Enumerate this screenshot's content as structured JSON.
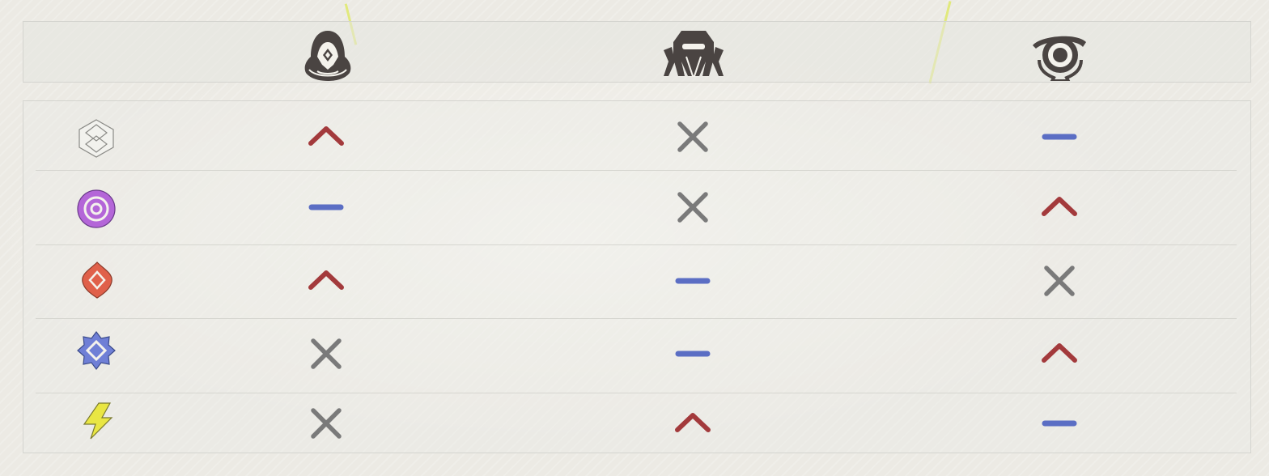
{
  "colors": {
    "advantage": "#a33a3c",
    "neutral": "#5b6ec4",
    "immune": "#7a7a7a",
    "header_icon": "#4a4442"
  },
  "columns": [
    {
      "icon": "hooded-figure-icon"
    },
    {
      "icon": "armored-helm-icon"
    },
    {
      "icon": "eye-sentinel-icon"
    }
  ],
  "rows": [
    {
      "element": "layered-diamond-icon",
      "element_color": "#f2f2ee",
      "matchups": [
        "advantage",
        "immune",
        "neutral"
      ]
    },
    {
      "element": "concentric-ring-icon",
      "element_color": "#b466d8",
      "matchups": [
        "neutral",
        "immune",
        "advantage"
      ]
    },
    {
      "element": "flame-diamond-icon",
      "element_color": "#e0604a",
      "matchups": [
        "advantage",
        "neutral",
        "immune"
      ]
    },
    {
      "element": "starburst-diamond-icon",
      "element_color": "#6f7fd6",
      "matchups": [
        "immune",
        "neutral",
        "advantage"
      ]
    },
    {
      "element": "lightning-bolt-icon",
      "element_color": "#e9e643",
      "matchups": [
        "immune",
        "advantage",
        "neutral"
      ]
    }
  ]
}
